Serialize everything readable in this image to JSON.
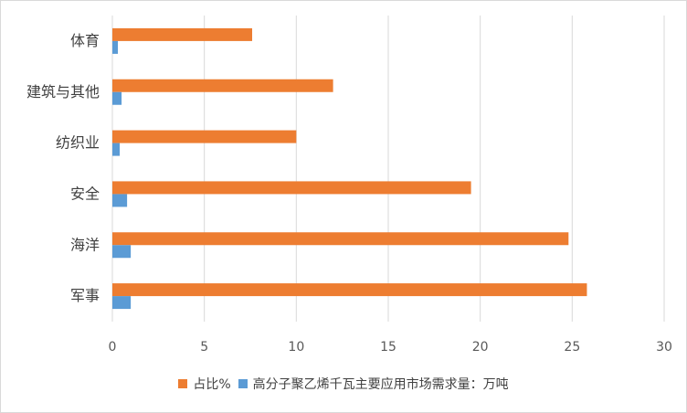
{
  "chart_data": {
    "type": "bar",
    "orientation": "horizontal",
    "categories": [
      "体育",
      "建筑与其他",
      "纺织业",
      "安全",
      "海洋",
      "军事"
    ],
    "series": [
      {
        "name": "占比%",
        "color": "#ED7D31",
        "values": [
          7.6,
          12.0,
          10.0,
          19.5,
          24.8,
          25.8
        ]
      },
      {
        "name": "高分子聚乙烯千瓦主要应用市场需求量：万吨",
        "color": "#5B9BD5",
        "values": [
          0.3,
          0.5,
          0.4,
          0.8,
          1.0,
          1.0
        ]
      }
    ],
    "xlim": [
      0,
      30
    ],
    "xticks": [
      "0",
      "5",
      "10",
      "15",
      "20",
      "25",
      "30"
    ],
    "grid": true,
    "legend_position": "bottom"
  }
}
